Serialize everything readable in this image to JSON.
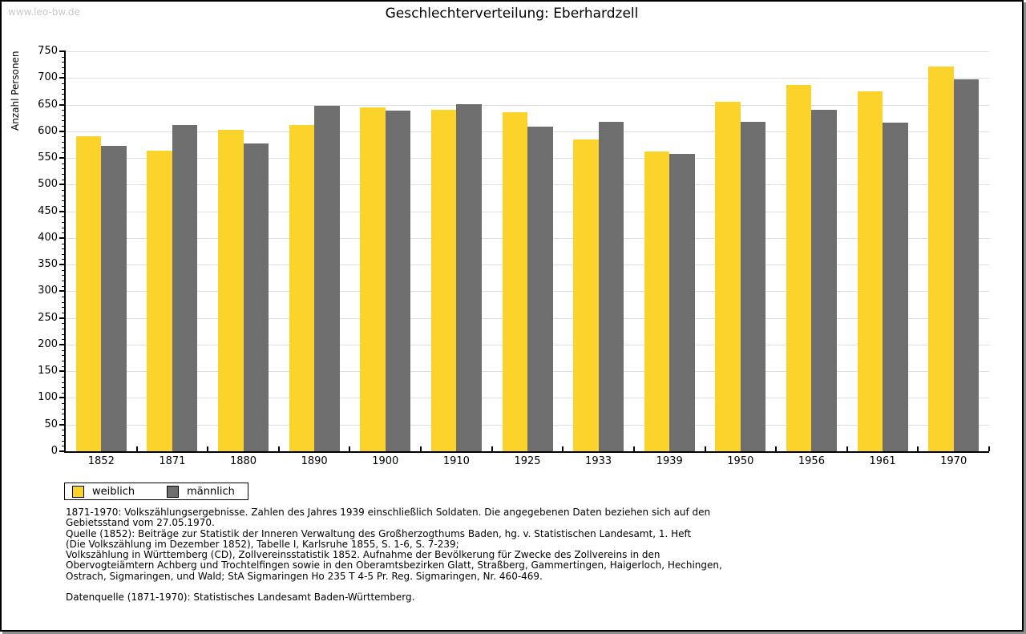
{
  "page": {
    "watermark": "www.leo-bw.de",
    "title": "Geschlechterverteilung: Eberhardzell"
  },
  "chart_data": {
    "type": "bar",
    "title": "Geschlechterverteilung: Eberhardzell",
    "xlabel": "",
    "ylabel": "Anzahl Personen",
    "ylim": [
      0,
      750
    ],
    "ytick_step": 50,
    "minor_tick_step": 10,
    "grid": true,
    "legend_position": "bottom-left",
    "categories": [
      "1852",
      "1871",
      "1880",
      "1890",
      "1900",
      "1910",
      "1925",
      "1933",
      "1939",
      "1950",
      "1956",
      "1961",
      "1970"
    ],
    "series": [
      {
        "name": "weiblich",
        "color": "#fcd32b",
        "values": [
          591,
          564,
          603,
          611,
          645,
          641,
          636,
          585,
          562,
          655,
          687,
          675,
          722
        ]
      },
      {
        "name": "männlich",
        "color": "#6e6e6e",
        "values": [
          573,
          612,
          577,
          648,
          639,
          651,
          608,
          618,
          557,
          618,
          640,
          616,
          698
        ]
      }
    ]
  },
  "colors": {
    "gridline": "#dedede",
    "axis": "#000000",
    "watermark": "#c9c9c9",
    "page_shadow": "#8f8f8f"
  },
  "footer": {
    "lines": [
      "1871-1970: Volkszählungsergebnisse. Zahlen des Jahres 1939 einschließlich Soldaten. Die angegebenen Daten beziehen sich auf den",
      "Gebietsstand vom 27.05.1970.",
      "Quelle (1852): Beiträge zur Statistik der Inneren Verwaltung des Großherzogthums Baden, hg. v. Statistischen Landesamt, 1. Heft",
      "(Die Volkszählung im Dezember 1852), Tabelle I, Karlsruhe 1855, S. 1-6, S. 7-239;",
      "Volkszählung in Württemberg (CD), Zollvereinsstatistik 1852. Aufnahme der Bevölkerung für Zwecke des Zollvereins in den",
      "Obervogteiämtern Achberg und Trochtelfingen sowie in den Oberamtsbezirken Glatt, Straßberg, Gammertingen, Haigerloch, Hechingen,",
      "Ostrach, Sigmaringen, und Wald; StA Sigmaringen Ho 235 T 4-5 Pr. Reg. Sigmaringen, Nr. 460-469."
    ],
    "datasource": "Datenquelle (1871-1970): Statistisches Landesamt Baden-Württemberg."
  }
}
